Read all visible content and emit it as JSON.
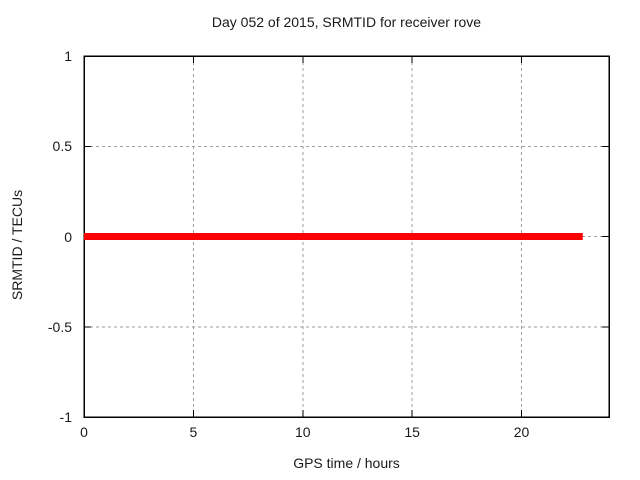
{
  "colors": {
    "background": "#ffffff",
    "border": "#000000",
    "grid": "#9e9e9e",
    "text": "#1a1a1a",
    "series_red": "#ff0000"
  },
  "chart_data": {
    "type": "line",
    "title": "Day 052 of 2015, SRMTID for receiver rove",
    "xlabel": "GPS time / hours",
    "ylabel": "SRMTID / TECUs",
    "xlim": [
      0,
      24
    ],
    "ylim": [
      -1,
      1
    ],
    "xticks": [
      0,
      5,
      10,
      15,
      20
    ],
    "xtick_labels": [
      "0",
      "5",
      "10",
      "15",
      "20"
    ],
    "yticks": [
      -1,
      -0.5,
      0,
      0.5,
      1
    ],
    "ytick_labels": [
      "-1",
      "-0.5",
      "0",
      "0.5",
      "1"
    ],
    "grid": true,
    "grid_style": "dashed",
    "legend": "none",
    "series": [
      {
        "name": "SRMTID",
        "color": "#ff0000",
        "linewidth": 7,
        "x": [
          0,
          22.8
        ],
        "y": [
          0,
          0
        ]
      }
    ]
  }
}
